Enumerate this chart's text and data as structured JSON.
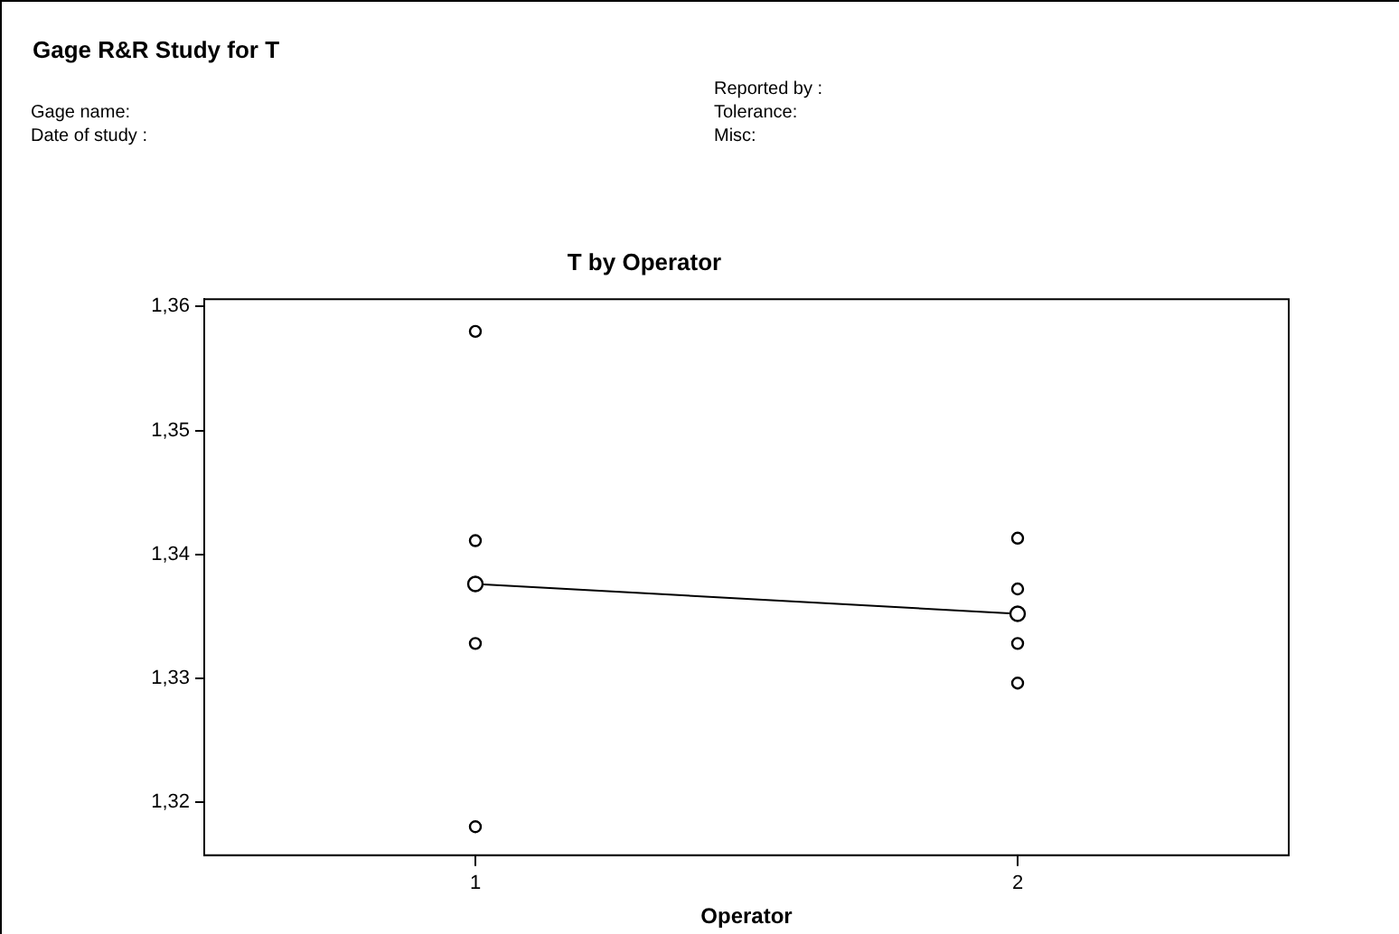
{
  "chart_data": {
    "type": "scatter",
    "title": "Gage R&R Study for T",
    "subtitle": "T by Operator",
    "xlabel": "Operator",
    "annotations": [
      "Gage name:",
      "Date of study :",
      "Reported by :",
      "Tolerance:",
      "Misc:"
    ],
    "categories": [
      "1",
      "2"
    ],
    "series": [
      {
        "x": [
          "1",
          "1",
          "1",
          "1",
          "2",
          "2",
          "2",
          "2"
        ],
        "values": [
          1.358,
          1.3411,
          1.3328,
          1.318,
          1.3413,
          1.3372,
          1.3328,
          1.3296
        ],
        "color": "#000000",
        "marker": "circle"
      },
      {
        "type": "line",
        "x": [
          "1",
          "2"
        ],
        "values": [
          1.3376,
          1.3352
        ],
        "color": "#000000",
        "marker": "circle",
        "line_style": "solid"
      }
    ],
    "ylim": [
      1.3157,
      1.3606
    ],
    "yticks": [
      {
        "value": 1.32,
        "label": "1,32"
      },
      {
        "value": 1.33,
        "label": "1,33"
      },
      {
        "value": 1.34,
        "label": "1,34"
      },
      {
        "value": 1.35,
        "label": "1,35"
      },
      {
        "value": 1.36,
        "label": "1,36"
      }
    ],
    "grid": false,
    "legend": false
  }
}
